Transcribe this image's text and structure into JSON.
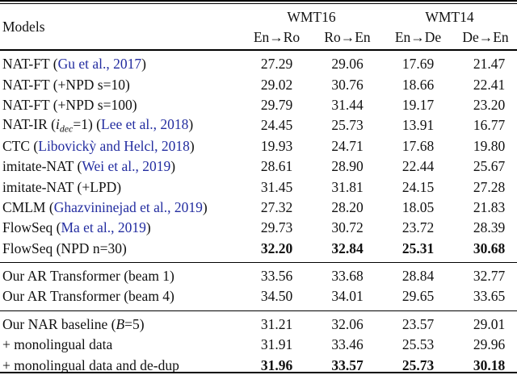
{
  "page": {
    "background": "#ffffff",
    "text_color": "#111111",
    "citation_color": "#232da0"
  },
  "table": {
    "header": {
      "models_label": "Models",
      "group_headers": [
        {
          "label": "WMT16",
          "columns": [
            "En→Ro",
            "Ro→En"
          ]
        },
        {
          "label": "WMT14",
          "columns": [
            "En→De",
            "De→En"
          ]
        }
      ]
    },
    "groups": [
      {
        "rows": [
          {
            "label_segments": [
              {
                "t": "NAT-FT ("
              },
              {
                "t": "Gu et al., 2017",
                "s": "cite"
              },
              {
                "t": ")"
              }
            ],
            "values": [
              "27.29",
              "29.06",
              "17.69",
              "21.47"
            ],
            "bold_values": false
          },
          {
            "label_segments": [
              {
                "t": "NAT-FT (+NPD s=10)"
              }
            ],
            "values": [
              "29.02",
              "30.76",
              "18.66",
              "22.41"
            ],
            "bold_values": false
          },
          {
            "label_segments": [
              {
                "t": "NAT-FT (+NPD s=100)"
              }
            ],
            "values": [
              "29.79",
              "31.44",
              "19.17",
              "23.20"
            ],
            "bold_values": false
          },
          {
            "label_segments": [
              {
                "t": "NAT-IR ("
              },
              {
                "t": "i",
                "s": "mathit"
              },
              {
                "t": "dec",
                "s": "sub"
              },
              {
                "t": "=1) ("
              },
              {
                "t": "Lee et al., 2018",
                "s": "cite"
              },
              {
                "t": ")"
              }
            ],
            "values": [
              "24.45",
              "25.73",
              "13.91",
              "16.77"
            ],
            "bold_values": false
          },
          {
            "label_segments": [
              {
                "t": "CTC ("
              },
              {
                "t": "Libovickỳ and Helcl, 2018",
                "s": "cite"
              },
              {
                "t": ")"
              }
            ],
            "values": [
              "19.93",
              "24.71",
              "17.68",
              "19.80"
            ],
            "bold_values": false
          },
          {
            "label_segments": [
              {
                "t": "imitate-NAT ("
              },
              {
                "t": "Wei et al., 2019",
                "s": "cite"
              },
              {
                "t": ")"
              }
            ],
            "values": [
              "28.61",
              "28.90",
              "22.44",
              "25.67"
            ],
            "bold_values": false
          },
          {
            "label_segments": [
              {
                "t": "imitate-NAT (+LPD)"
              }
            ],
            "values": [
              "31.45",
              "31.81",
              "24.15",
              "27.28"
            ],
            "bold_values": false
          },
          {
            "label_segments": [
              {
                "t": "CMLM ("
              },
              {
                "t": "Ghazvininejad et al., 2019",
                "s": "cite"
              },
              {
                "t": ")"
              }
            ],
            "values": [
              "27.32",
              "28.20",
              "18.05",
              "21.83"
            ],
            "bold_values": false
          },
          {
            "label_segments": [
              {
                "t": "FlowSeq ("
              },
              {
                "t": "Ma et al., 2019",
                "s": "cite"
              },
              {
                "t": ")"
              }
            ],
            "values": [
              "29.73",
              "30.72",
              "23.72",
              "28.39"
            ],
            "bold_values": false
          },
          {
            "label_segments": [
              {
                "t": "FlowSeq (NPD n=30)"
              }
            ],
            "values": [
              "32.20",
              "32.84",
              "25.31",
              "30.68"
            ],
            "bold_values": true
          }
        ]
      },
      {
        "rows": [
          {
            "label_segments": [
              {
                "t": "Our AR Transformer (beam 1)"
              }
            ],
            "values": [
              "33.56",
              "33.68",
              "28.84",
              "32.77"
            ],
            "bold_values": false
          },
          {
            "label_segments": [
              {
                "t": "Our AR Transformer (beam 4)"
              }
            ],
            "values": [
              "34.50",
              "34.01",
              "29.65",
              "33.65"
            ],
            "bold_values": false
          }
        ]
      },
      {
        "rows": [
          {
            "label_segments": [
              {
                "t": "Our NAR baseline ("
              },
              {
                "t": "B",
                "s": "mathit"
              },
              {
                "t": "=5)"
              }
            ],
            "values": [
              "31.21",
              "32.06",
              "23.57",
              "29.01"
            ],
            "bold_values": false
          },
          {
            "label_segments": [
              {
                "t": "+ monolingual data"
              }
            ],
            "values": [
              "31.91",
              "33.46",
              "25.53",
              "29.96"
            ],
            "bold_values": false
          },
          {
            "label_segments": [
              {
                "t": "+ monolingual data and de-dup"
              }
            ],
            "values": [
              "31.96",
              "33.57",
              "25.73",
              "30.18"
            ],
            "bold_values": true
          }
        ]
      }
    ]
  }
}
